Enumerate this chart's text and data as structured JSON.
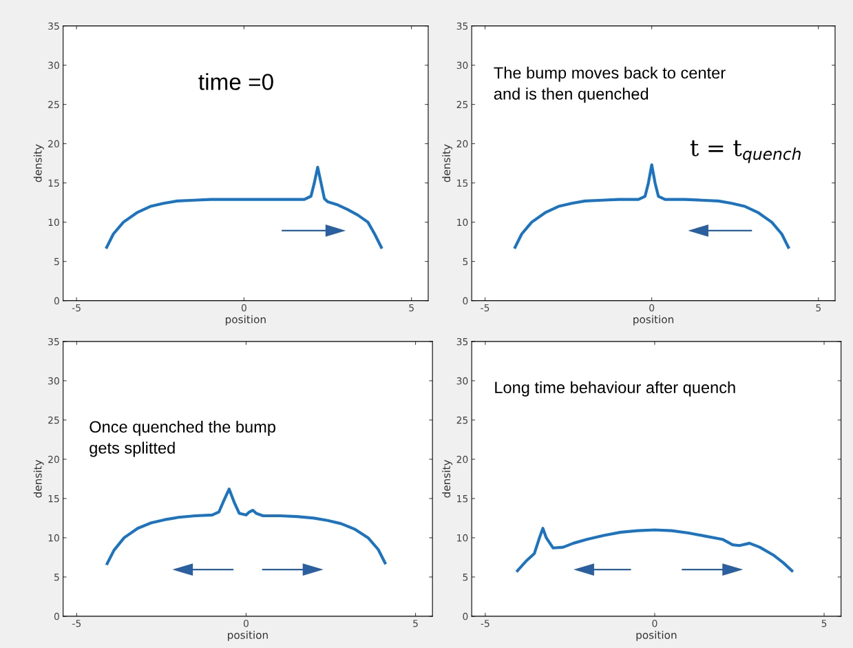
{
  "chart_data": [
    {
      "type": "line",
      "xlabel": "position",
      "ylabel": "density",
      "xlim": [
        -5.4,
        5.5
      ],
      "ylim": [
        0,
        35
      ],
      "xticks": [
        -5,
        0,
        5
      ],
      "yticks": [
        0,
        5,
        10,
        15,
        20,
        25,
        30,
        35
      ],
      "grid": false,
      "legend": false,
      "annotations": [
        "time =0"
      ],
      "series": [
        {
          "color": "#1a74c2",
          "x": [
            -4.1,
            -3.9,
            -3.6,
            -3.2,
            -2.8,
            -2.4,
            -2.0,
            -1.5,
            -1.0,
            0.0,
            1.0,
            1.8,
            2.0,
            2.1,
            2.2,
            2.3,
            2.4,
            2.5,
            2.8,
            3.1,
            3.4,
            3.7,
            3.9,
            4.1
          ],
          "values": [
            6.8,
            8.5,
            10.0,
            11.2,
            12.0,
            12.4,
            12.7,
            12.8,
            12.9,
            12.9,
            12.9,
            12.9,
            13.3,
            15.0,
            17.0,
            15.0,
            13.0,
            12.6,
            12.2,
            11.6,
            10.9,
            10.0,
            8.5,
            6.8
          ]
        }
      ]
    },
    {
      "type": "line",
      "xlabel": "position",
      "ylabel": "density",
      "xlim": [
        -5.4,
        5.5
      ],
      "ylim": [
        0,
        35
      ],
      "xticks": [
        -5,
        0,
        5
      ],
      "yticks": [
        0,
        5,
        10,
        15,
        20,
        25,
        30,
        35
      ],
      "grid": false,
      "legend": false,
      "annotations": [
        "The bump moves back to center\nand is then quenched",
        "t = t$_{quench}$"
      ],
      "series": [
        {
          "color": "#1a74c2",
          "x": [
            -4.1,
            -3.9,
            -3.6,
            -3.2,
            -2.8,
            -2.4,
            -2.0,
            -1.5,
            -1.0,
            -0.4,
            -0.2,
            -0.1,
            0.0,
            0.1,
            0.2,
            0.4,
            1.0,
            1.5,
            2.0,
            2.4,
            2.8,
            3.2,
            3.6,
            3.9,
            4.1
          ],
          "values": [
            6.8,
            8.5,
            10.0,
            11.2,
            12.0,
            12.4,
            12.7,
            12.8,
            12.9,
            12.9,
            13.3,
            15.0,
            17.3,
            15.0,
            13.3,
            12.9,
            12.9,
            12.8,
            12.7,
            12.4,
            12.0,
            11.2,
            10.0,
            8.5,
            6.8
          ]
        }
      ]
    },
    {
      "type": "line",
      "xlabel": "position",
      "ylabel": "density",
      "xlim": [
        -5.4,
        5.5
      ],
      "ylim": [
        0,
        35
      ],
      "xticks": [
        -5,
        0,
        5
      ],
      "yticks": [
        0,
        5,
        10,
        15,
        20,
        25,
        30,
        35
      ],
      "grid": false,
      "legend": false,
      "annotations": [
        "Once quenched the bump\ngets splitted"
      ],
      "series": [
        {
          "color": "#1a74c2",
          "x": [
            -4.1,
            -3.9,
            -3.6,
            -3.2,
            -2.8,
            -2.4,
            -2.0,
            -1.5,
            -1.0,
            -0.8,
            -0.65,
            -0.5,
            -0.35,
            -0.2,
            0.0,
            0.1,
            0.2,
            0.3,
            0.5,
            1.0,
            1.5,
            2.0,
            2.4,
            2.8,
            3.2,
            3.6,
            3.9,
            4.1
          ],
          "values": [
            6.7,
            8.4,
            10.0,
            11.2,
            11.9,
            12.3,
            12.6,
            12.8,
            12.9,
            13.3,
            14.8,
            16.2,
            14.5,
            13.1,
            12.9,
            13.3,
            13.5,
            13.1,
            12.8,
            12.8,
            12.7,
            12.5,
            12.2,
            11.8,
            11.1,
            10.0,
            8.5,
            6.8
          ]
        }
      ]
    },
    {
      "type": "line",
      "xlabel": "position",
      "ylabel": "density",
      "xlim": [
        -5.4,
        5.5
      ],
      "ylim": [
        0,
        35
      ],
      "xticks": [
        -5,
        0,
        5
      ],
      "yticks": [
        0,
        5,
        10,
        15,
        20,
        25,
        30,
        35
      ],
      "grid": false,
      "legend": false,
      "annotations": [
        "Long time behaviour after quench"
      ],
      "series": [
        {
          "color": "#1a74c2",
          "x": [
            -4.05,
            -3.8,
            -3.55,
            -3.4,
            -3.3,
            -3.2,
            -3.0,
            -2.7,
            -2.4,
            -2.0,
            -1.5,
            -1.0,
            -0.5,
            0.0,
            0.5,
            1.0,
            1.5,
            2.0,
            2.3,
            2.5,
            2.8,
            3.1,
            3.5,
            3.8,
            4.05
          ],
          "values": [
            5.8,
            7.0,
            8.0,
            10.0,
            11.2,
            10.0,
            8.7,
            8.8,
            9.3,
            9.8,
            10.3,
            10.7,
            10.9,
            11.0,
            10.9,
            10.6,
            10.2,
            9.8,
            9.1,
            9.0,
            9.3,
            8.8,
            7.8,
            6.8,
            5.8
          ]
        }
      ]
    }
  ]
}
